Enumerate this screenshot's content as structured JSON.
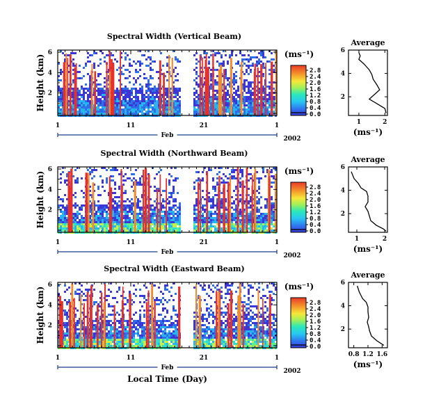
{
  "chart_data": [
    {
      "type": "heatmap",
      "title": "Spectral Width (Vertical Beam)",
      "ylabel": "Height (km)",
      "yticks": [
        "6",
        "4",
        "2"
      ],
      "xticks": [
        "1",
        "11",
        "21",
        "1"
      ],
      "month": "Feb",
      "year": "2002",
      "colorbar_unit": "(ms⁻¹)",
      "colorbar_ticks": [
        "2.8",
        "2.4",
        "2.0",
        "1.6",
        "1.2",
        "0.8",
        "0.4",
        "0.0"
      ],
      "average": {
        "title": "Average",
        "xlabel": "(ms⁻¹)",
        "xticks": [
          "1",
          "2"
        ],
        "xlim": [
          0.6,
          2.1
        ],
        "yticks": [
          "6",
          "4",
          "2"
        ],
        "ylim": [
          0.4,
          6.0
        ],
        "profile": [
          [
            1.0,
            5.8
          ],
          [
            1.05,
            5.5
          ],
          [
            1.0,
            5.2
          ],
          [
            1.2,
            4.8
          ],
          [
            1.4,
            4.3
          ],
          [
            1.5,
            3.9
          ],
          [
            1.55,
            3.5
          ],
          [
            1.7,
            3.0
          ],
          [
            1.8,
            2.6
          ],
          [
            1.55,
            2.1
          ],
          [
            1.4,
            1.8
          ],
          [
            1.7,
            1.4
          ],
          [
            2.0,
            1.0
          ],
          [
            2.05,
            0.6
          ]
        ]
      }
    },
    {
      "type": "heatmap",
      "title": "Spectral Width (Northward Beam)",
      "ylabel": "Height (km)",
      "yticks": [
        "6",
        "4",
        "2"
      ],
      "xticks": [
        "1",
        "11",
        "21",
        "1"
      ],
      "month": "Feb",
      "year": "2002",
      "colorbar_unit": "(ms⁻¹)",
      "colorbar_ticks": [
        "2.8",
        "2.4",
        "2.0",
        "1.6",
        "1.2",
        "0.8",
        "0.4",
        "0.0"
      ],
      "average": {
        "title": "Average",
        "xlabel": "(ms⁻¹)",
        "xticks": [
          "1",
          "2"
        ],
        "xlim": [
          0.7,
          2.1
        ],
        "yticks": [
          "6",
          "4",
          "2"
        ],
        "ylim": [
          0.4,
          6.0
        ],
        "profile": [
          [
            0.8,
            5.6
          ],
          [
            0.9,
            5.0
          ],
          [
            1.05,
            4.6
          ],
          [
            1.15,
            4.2
          ],
          [
            1.35,
            3.9
          ],
          [
            1.4,
            3.5
          ],
          [
            1.4,
            3.0
          ],
          [
            1.3,
            2.6
          ],
          [
            1.4,
            2.2
          ],
          [
            1.45,
            1.8
          ],
          [
            1.5,
            1.4
          ],
          [
            1.7,
            1.0
          ],
          [
            1.95,
            0.7
          ],
          [
            2.05,
            0.5
          ]
        ]
      }
    },
    {
      "type": "heatmap",
      "title": "Spectral Width (Eastward Beam)",
      "ylabel": "Height (km)",
      "yticks": [
        "6",
        "4",
        "2"
      ],
      "xticks": [
        "1",
        "11",
        "21",
        "1"
      ],
      "month": "Feb",
      "year": "2002",
      "xlabel": "Local Time (Day)",
      "colorbar_unit": "(ms⁻¹)",
      "colorbar_ticks": [
        "2.8",
        "2.4",
        "2.0",
        "1.6",
        "1.2",
        "0.8",
        "0.4",
        "0.0"
      ],
      "average": {
        "title": "Average",
        "xlabel": "(ms⁻¹)",
        "xticks": [
          "0.8",
          "1.2",
          "1.6"
        ],
        "xlim": [
          0.65,
          1.75
        ],
        "yticks": [
          "6",
          "4",
          "2"
        ],
        "ylim": [
          0.4,
          6.0
        ],
        "profile": [
          [
            0.9,
            5.7
          ],
          [
            0.95,
            5.2
          ],
          [
            1.0,
            4.9
          ],
          [
            1.05,
            4.6
          ],
          [
            1.15,
            4.3
          ],
          [
            1.2,
            3.9
          ],
          [
            1.2,
            3.5
          ],
          [
            1.22,
            3.0
          ],
          [
            1.18,
            2.6
          ],
          [
            1.22,
            2.2
          ],
          [
            1.25,
            1.8
          ],
          [
            1.3,
            1.4
          ],
          [
            1.45,
            1.0
          ],
          [
            1.65,
            0.6
          ]
        ]
      }
    }
  ]
}
